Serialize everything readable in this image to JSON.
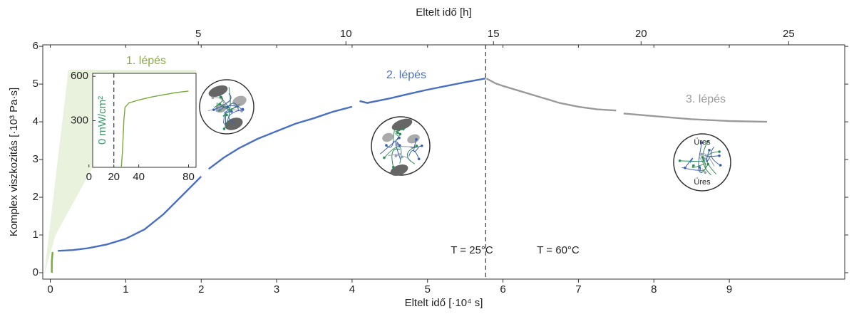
{
  "chart_data": [
    {
      "type": "line",
      "x_label": "Eltelt idő [·10⁴ s]",
      "x2_label": "Eltelt idő [h]",
      "y_label": "Komplex viszkozitás [·10³ Pa·s]",
      "xlim": [
        -0.1,
        10.53
      ],
      "xticks": [
        0,
        1,
        2,
        3,
        4,
        5,
        6,
        7,
        8,
        9
      ],
      "x2lim": [
        -0.27,
        26.9
      ],
      "x2ticks": [
        5,
        10,
        15,
        20,
        25
      ],
      "ylim": [
        -0.17,
        6.04
      ],
      "yticks": [
        0,
        1,
        2,
        3,
        4,
        5,
        6
      ],
      "vline": 5.77,
      "series": [
        {
          "name": "1. lépés",
          "color": "#7aa83a",
          "x": [
            0.02,
            0.02,
            0.03
          ],
          "values": [
            0,
            0.3,
            0.55
          ]
        },
        {
          "name": "2. lépés",
          "color": "#4a6fbf",
          "x": [
            0.1,
            0.3,
            0.5,
            0.75,
            1.0,
            1.25,
            1.5,
            1.75,
            2.0,
            2.05,
            2.1,
            2.3,
            2.5,
            2.75,
            3.0,
            3.25,
            3.5,
            3.75,
            4.0,
            4.05,
            4.1,
            4.2,
            4.5,
            4.75,
            5.0,
            5.25,
            5.5,
            5.77
          ],
          "values": [
            0.58,
            0.6,
            0.65,
            0.75,
            0.9,
            1.15,
            1.55,
            2.05,
            2.55,
            null,
            2.75,
            3.05,
            3.3,
            3.55,
            3.75,
            3.95,
            4.1,
            4.27,
            4.4,
            null,
            4.55,
            4.5,
            4.62,
            4.74,
            4.85,
            4.95,
            5.05,
            5.15
          ]
        },
        {
          "name": "3. lépés",
          "color": "#9a9a9a",
          "x": [
            5.78,
            5.9,
            6.0,
            6.25,
            6.5,
            6.75,
            7.0,
            7.25,
            7.5,
            7.55,
            7.6,
            8.0,
            8.5,
            9.0,
            9.5
          ],
          "values": [
            5.15,
            5.02,
            4.95,
            4.8,
            4.65,
            4.5,
            4.4,
            4.33,
            4.3,
            null,
            4.22,
            4.15,
            4.07,
            4.02,
            4.0
          ]
        }
      ],
      "annotations": [
        "T = 25°C",
        "T = 60°C"
      ],
      "illustration_labels": [
        "Üres",
        "Üres"
      ]
    },
    {
      "type": "line",
      "title": "1. lépés",
      "y_label": "0 mW/cm²",
      "xlim": [
        3,
        86
      ],
      "xticks": [
        0,
        20,
        40,
        80
      ],
      "ylim": [
        -15,
        620
      ],
      "yticks": [
        300,
        600
      ],
      "vline": 20,
      "series": [
        {
          "color": "#7aa83a",
          "x": [
            26,
            27,
            28,
            29,
            32,
            40,
            50,
            60,
            70,
            80
          ],
          "values": [
            -15,
            100,
            300,
            390,
            420,
            440,
            460,
            475,
            490,
            500
          ]
        }
      ]
    }
  ]
}
